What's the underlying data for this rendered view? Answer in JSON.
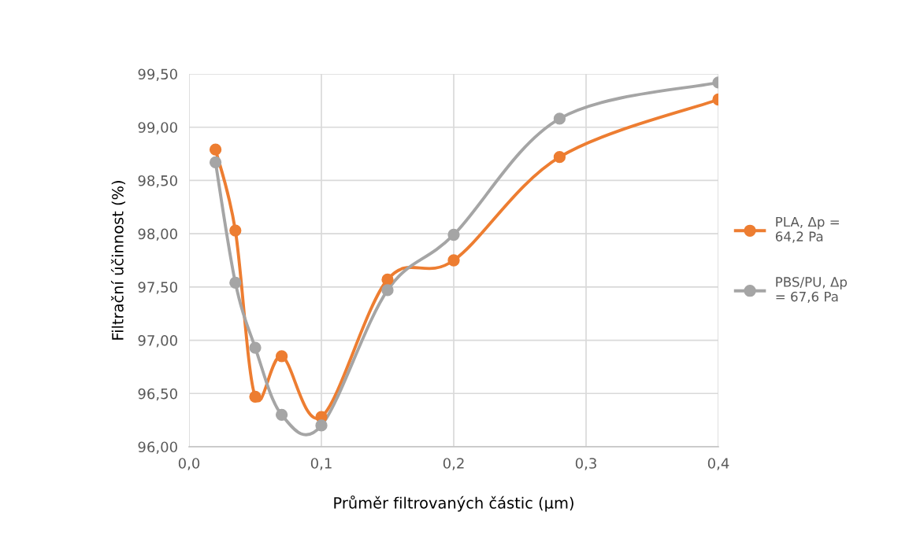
{
  "chart_data": {
    "type": "line",
    "xlabel": "Průměr filtrovaných částic (µm)",
    "ylabel": "Filtrační účinnost (%)",
    "x": [
      0.02,
      0.035,
      0.05,
      0.07,
      0.1,
      0.15,
      0.2,
      0.28,
      0.4
    ],
    "series": [
      {
        "name": "PLA, Δp = 64,2 Pa",
        "color": "#ed7d31",
        "values": [
          98.79,
          98.03,
          96.47,
          96.85,
          96.28,
          97.57,
          97.75,
          98.72,
          99.26
        ]
      },
      {
        "name": "PBS/PU, Δp = 67,6 Pa",
        "color": "#a5a5a5",
        "values": [
          98.67,
          97.54,
          96.93,
          96.3,
          96.2,
          97.47,
          97.99,
          99.08,
          99.42
        ]
      }
    ],
    "xlim": [
      0,
      0.4
    ],
    "xticks": [
      {
        "value": 0,
        "label": "0,0"
      },
      {
        "value": 0.1,
        "label": "0,1"
      },
      {
        "value": 0.2,
        "label": "0,2"
      },
      {
        "value": 0.3,
        "label": "0,3"
      },
      {
        "value": 0.4,
        "label": "0,4"
      }
    ],
    "ylim": [
      96,
      99.5
    ],
    "yticks": [
      {
        "value": 96,
        "label": "96,00"
      },
      {
        "value": 96.5,
        "label": "96,50"
      },
      {
        "value": 97,
        "label": "97,00"
      },
      {
        "value": 97.5,
        "label": "97,50"
      },
      {
        "value": 98,
        "label": "98,00"
      },
      {
        "value": 98.5,
        "label": "98,50"
      },
      {
        "value": 99,
        "label": "99,00"
      },
      {
        "value": 99.5,
        "label": "99,50"
      }
    ],
    "grid": true,
    "legend": "right",
    "marker": "circle",
    "line_style": "solid"
  }
}
